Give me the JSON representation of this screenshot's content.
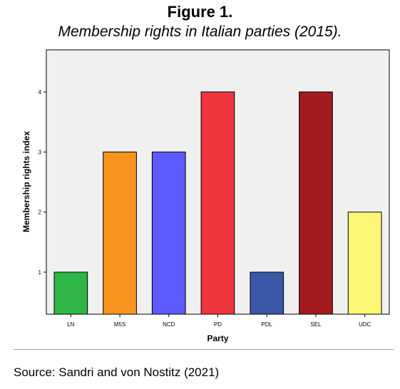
{
  "figure": {
    "label": "Figure 1.",
    "caption": "Membership rights in Italian parties (2015).",
    "source": "Source: Sandri and von Nostitz (2021)"
  },
  "chart_data": {
    "type": "bar",
    "categories": [
      "LN",
      "M5S",
      "NCD",
      "PD",
      "PDL",
      "SEL",
      "UDC"
    ],
    "values": [
      1,
      3,
      3,
      4,
      1,
      4,
      2
    ],
    "colors": [
      "#2fb548",
      "#f7941d",
      "#5b5bff",
      "#ee353d",
      "#3a57a8",
      "#a2191e",
      "#fcf875"
    ],
    "xlabel": "Party",
    "ylabel": "Membership rights index",
    "yticks": [
      1,
      2,
      3,
      4
    ],
    "ylim": [
      0.3,
      4.7
    ],
    "grid": false,
    "plot_background": "#f0f0f0"
  }
}
